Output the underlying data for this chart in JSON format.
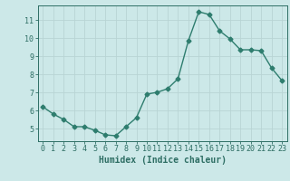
{
  "x": [
    0,
    1,
    2,
    3,
    4,
    5,
    6,
    7,
    8,
    9,
    10,
    11,
    12,
    13,
    14,
    15,
    16,
    17,
    18,
    19,
    20,
    21,
    22,
    23
  ],
  "y": [
    6.2,
    5.8,
    5.5,
    5.1,
    5.1,
    4.9,
    4.65,
    4.6,
    5.1,
    5.6,
    6.9,
    7.0,
    7.2,
    7.75,
    9.85,
    11.45,
    11.3,
    10.4,
    9.95,
    9.35,
    9.35,
    9.3,
    8.35,
    7.65
  ],
  "line_color": "#2e7d6e",
  "marker": "D",
  "markersize": 2.5,
  "linewidth": 1.0,
  "bg_color": "#cce8e8",
  "grid_color": "#b8d4d4",
  "xlabel": "Humidex (Indice chaleur)",
  "xlabel_fontsize": 7,
  "tick_color": "#2e6e64",
  "tick_fontsize": 6,
  "yticks": [
    5,
    6,
    7,
    8,
    9,
    10,
    11
  ],
  "xticks": [
    0,
    1,
    2,
    3,
    4,
    5,
    6,
    7,
    8,
    9,
    10,
    11,
    12,
    13,
    14,
    15,
    16,
    17,
    18,
    19,
    20,
    21,
    22,
    23
  ],
  "ylim": [
    4.3,
    11.8
  ],
  "xlim": [
    -0.5,
    23.5
  ]
}
